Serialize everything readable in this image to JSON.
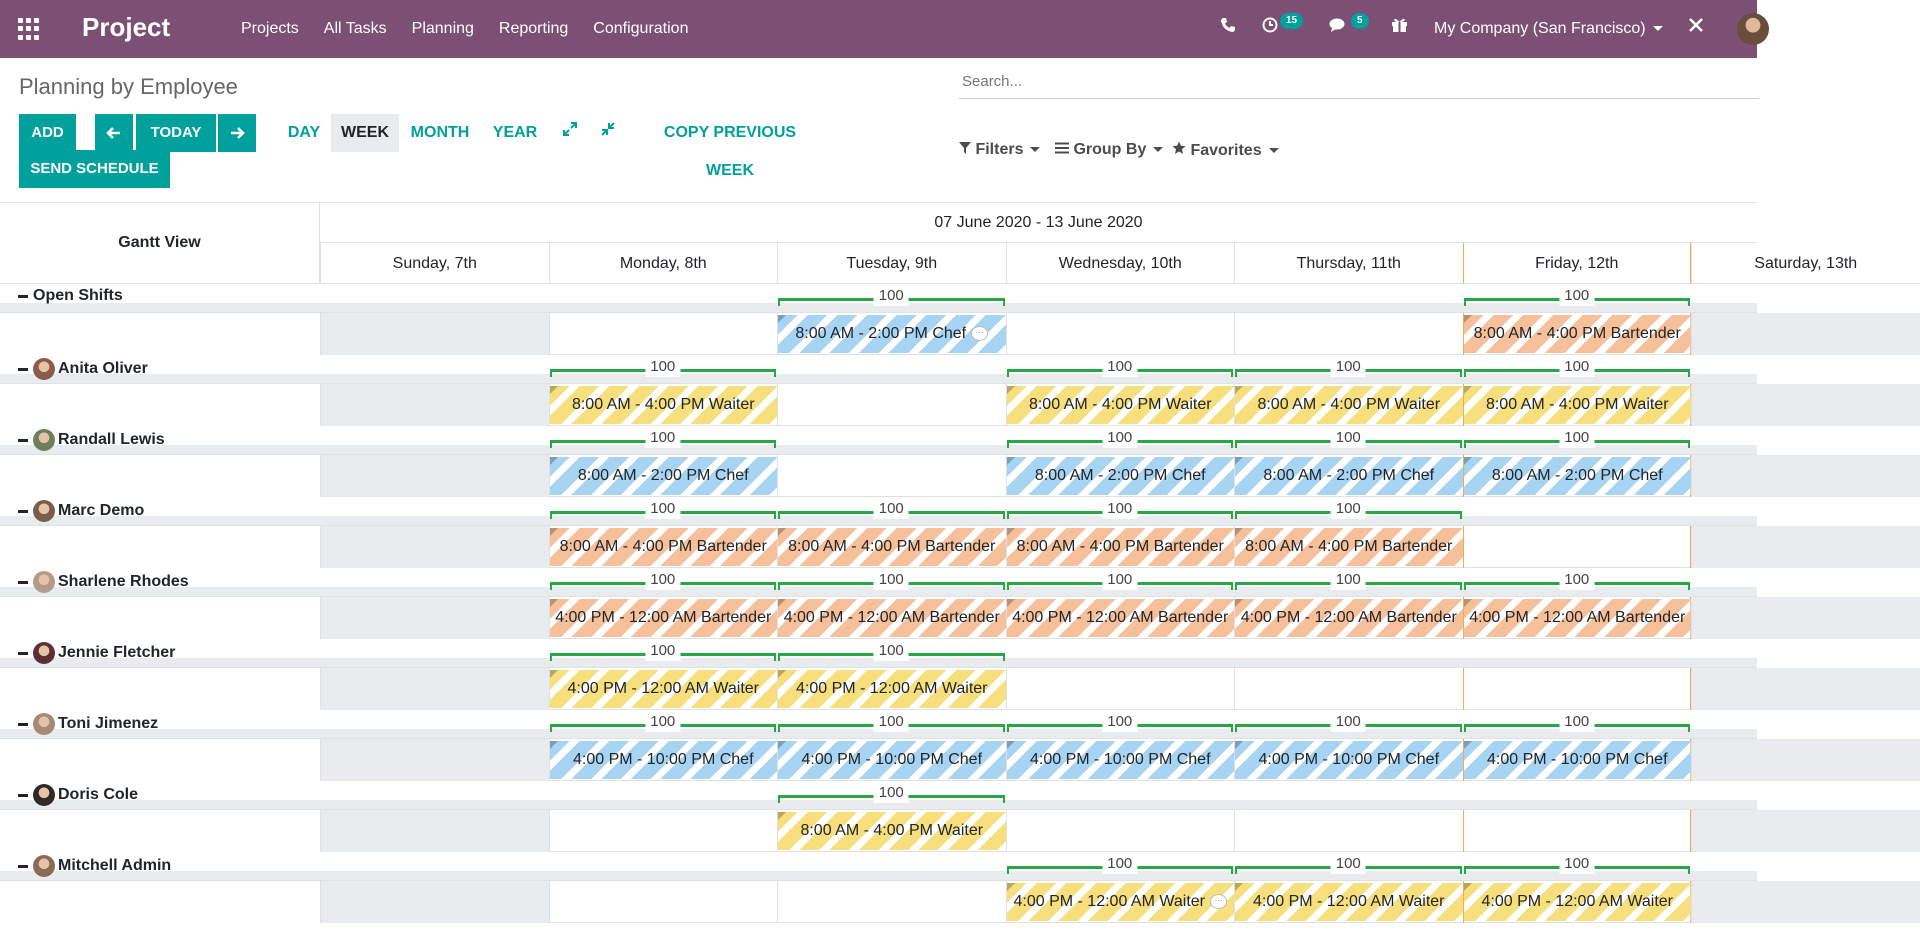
{
  "nav": {
    "brand": "Project",
    "menu": [
      "Projects",
      "All Tasks",
      "Planning",
      "Reporting",
      "Configuration"
    ],
    "activity_count": "15",
    "messages_count": "5",
    "company": "My Company (San Francisco)"
  },
  "control": {
    "title": "Planning by Employee",
    "search_placeholder": "Search...",
    "add": "ADD",
    "today": "TODAY",
    "send_schedule": "SEND SCHEDULE",
    "scales": [
      "DAY",
      "WEEK",
      "MONTH",
      "YEAR"
    ],
    "active_scale": "WEEK",
    "copy_previous_week": "COPY PREVIOUS WEEK",
    "filters": "Filters",
    "group_by": "Group By",
    "favorites": "Favorites"
  },
  "gantt": {
    "header_title": "Gantt View",
    "range": "07 June 2020 - 13 June 2020",
    "days": [
      "Sunday, 7th",
      "Monday, 8th",
      "Tuesday, 9th",
      "Wednesday, 10th",
      "Thursday, 11th",
      "Friday, 12th",
      "Saturday, 13th"
    ],
    "today_day": "Friday, 12th",
    "weekend_days": [
      "Sunday, 7th",
      "Saturday, 13th"
    ],
    "role_colors": {
      "Chef": "#a6d4f2",
      "Waiter": "#f7df7d",
      "Bartender": "#f6c09a"
    },
    "rows": [
      {
        "name": "Open Shifts",
        "avatar": false,
        "allocation": "100",
        "shifts": [
          {
            "day": 2,
            "label": "8:00 AM - 2:00 PM Chef",
            "role": "Chef",
            "comment": true
          },
          {
            "day": 5,
            "label": "8:00 AM - 4:00 PM Bartender",
            "role": "Bartender"
          }
        ]
      },
      {
        "name": "Anita Oliver",
        "avatar": true,
        "allocation": "100",
        "shifts": [
          {
            "day": 1,
            "label": "8:00 AM - 4:00 PM Waiter",
            "role": "Waiter"
          },
          {
            "day": 3,
            "label": "8:00 AM - 4:00 PM Waiter",
            "role": "Waiter"
          },
          {
            "day": 4,
            "label": "8:00 AM - 4:00 PM Waiter",
            "role": "Waiter"
          },
          {
            "day": 5,
            "label": "8:00 AM - 4:00 PM Waiter",
            "role": "Waiter"
          }
        ]
      },
      {
        "name": "Randall Lewis",
        "avatar": true,
        "allocation": "100",
        "shifts": [
          {
            "day": 1,
            "label": "8:00 AM - 2:00 PM Chef",
            "role": "Chef"
          },
          {
            "day": 3,
            "label": "8:00 AM - 2:00 PM Chef",
            "role": "Chef"
          },
          {
            "day": 4,
            "label": "8:00 AM - 2:00 PM Chef",
            "role": "Chef"
          },
          {
            "day": 5,
            "label": "8:00 AM - 2:00 PM Chef",
            "role": "Chef"
          }
        ]
      },
      {
        "name": "Marc Demo",
        "avatar": true,
        "allocation": "100",
        "shifts": [
          {
            "day": 1,
            "label": "8:00 AM - 4:00 PM Bartender",
            "role": "Bartender"
          },
          {
            "day": 2,
            "label": "8:00 AM - 4:00 PM Bartender",
            "role": "Bartender"
          },
          {
            "day": 3,
            "label": "8:00 AM - 4:00 PM Bartender",
            "role": "Bartender"
          },
          {
            "day": 4,
            "label": "8:00 AM - 4:00 PM Bartender",
            "role": "Bartender"
          }
        ]
      },
      {
        "name": "Sharlene Rhodes",
        "avatar": true,
        "allocation": "100",
        "shifts": [
          {
            "day": 1,
            "label": "4:00 PM - 12:00 AM Bartender",
            "role": "Bartender"
          },
          {
            "day": 2,
            "label": "4:00 PM - 12:00 AM Bartender",
            "role": "Bartender"
          },
          {
            "day": 3,
            "label": "4:00 PM - 12:00 AM Bartender",
            "role": "Bartender"
          },
          {
            "day": 4,
            "label": "4:00 PM - 12:00 AM Bartender",
            "role": "Bartender"
          },
          {
            "day": 5,
            "label": "4:00 PM - 12:00 AM Bartender",
            "role": "Bartender"
          }
        ]
      },
      {
        "name": "Jennie Fletcher",
        "avatar": true,
        "allocation": "100",
        "shifts": [
          {
            "day": 1,
            "label": "4:00 PM - 12:00 AM Waiter",
            "role": "Waiter"
          },
          {
            "day": 2,
            "label": "4:00 PM - 12:00 AM Waiter",
            "role": "Waiter"
          }
        ]
      },
      {
        "name": "Toni Jimenez",
        "avatar": true,
        "allocation": "100",
        "shifts": [
          {
            "day": 1,
            "label": "4:00 PM - 10:00 PM Chef",
            "role": "Chef"
          },
          {
            "day": 2,
            "label": "4:00 PM - 10:00 PM Chef",
            "role": "Chef"
          },
          {
            "day": 3,
            "label": "4:00 PM - 10:00 PM Chef",
            "role": "Chef"
          },
          {
            "day": 4,
            "label": "4:00 PM - 10:00 PM Chef",
            "role": "Chef"
          },
          {
            "day": 5,
            "label": "4:00 PM - 10:00 PM Chef",
            "role": "Chef"
          }
        ]
      },
      {
        "name": "Doris Cole",
        "avatar": true,
        "allocation": "100",
        "shifts": [
          {
            "day": 2,
            "label": "8:00 AM - 4:00 PM Waiter",
            "role": "Waiter"
          }
        ]
      },
      {
        "name": "Mitchell Admin",
        "avatar": true,
        "allocation": "100",
        "shifts": [
          {
            "day": 3,
            "label": "4:00 PM - 12:00 AM Waiter",
            "role": "Waiter",
            "comment": true
          },
          {
            "day": 4,
            "label": "4:00 PM - 12:00 AM Waiter",
            "role": "Waiter"
          },
          {
            "day": 5,
            "label": "4:00 PM - 12:00 AM Waiter",
            "role": "Waiter"
          }
        ]
      }
    ]
  }
}
